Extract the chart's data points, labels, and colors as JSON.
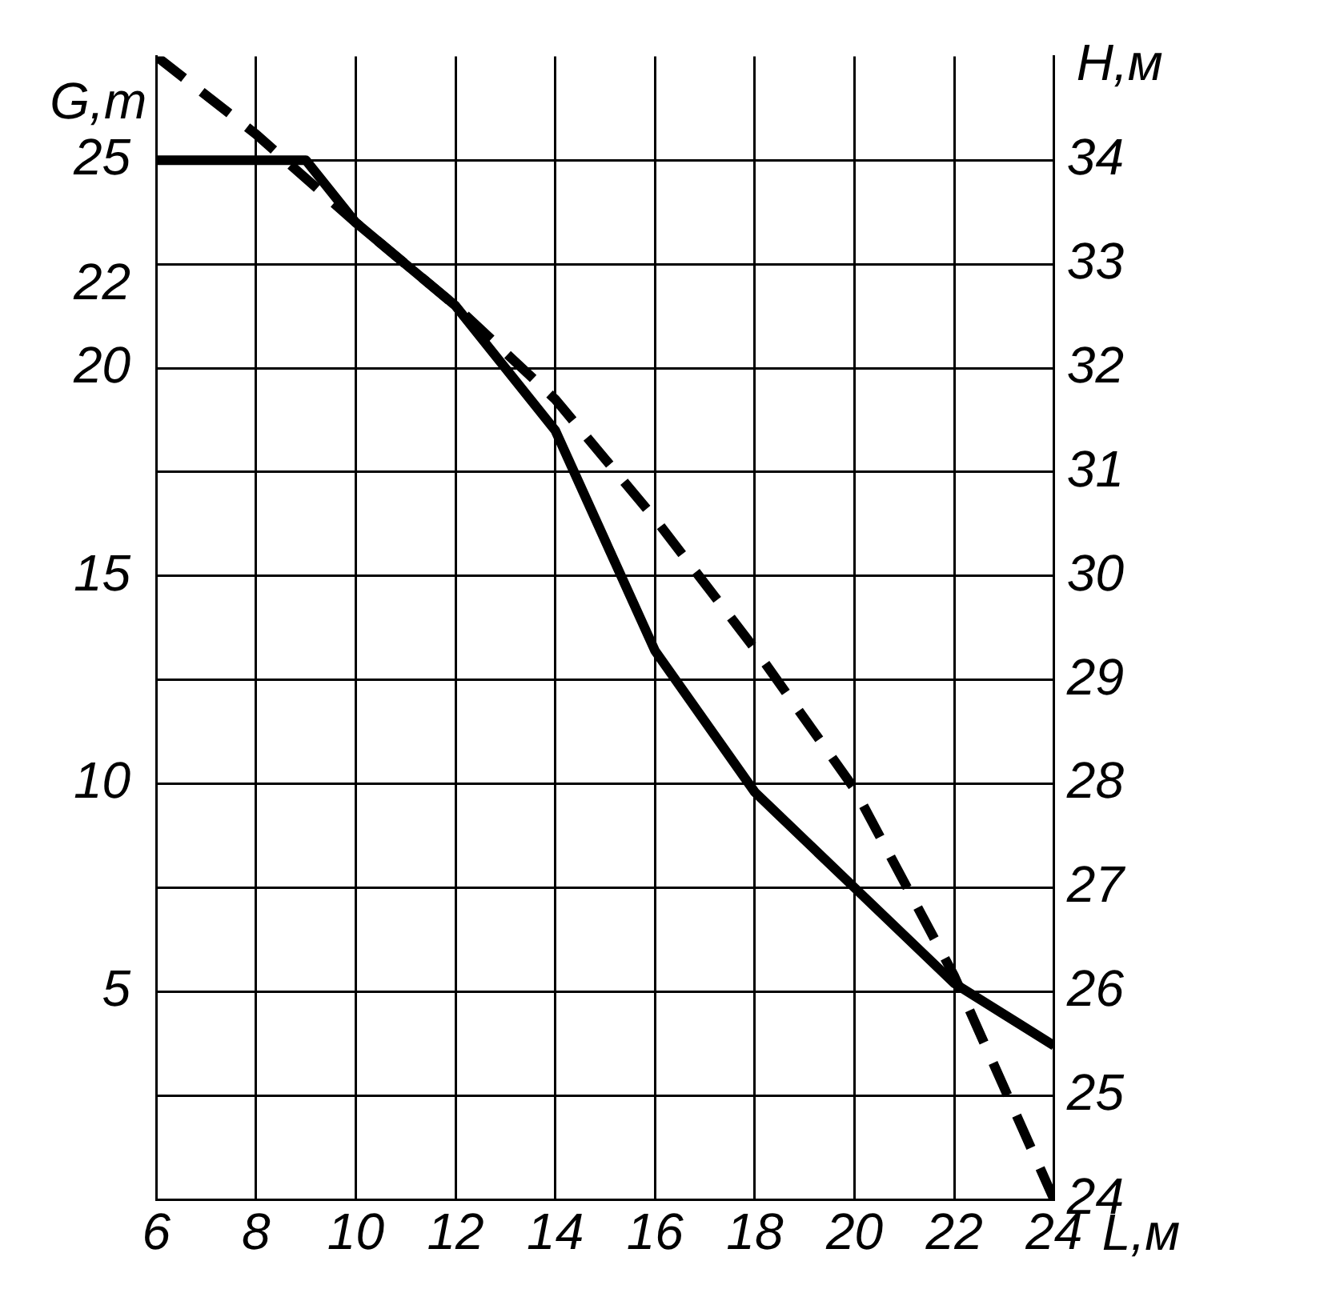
{
  "chart_data": {
    "type": "line",
    "xlabel": "L,м",
    "ylabel": "G,т",
    "y2label": "H,м",
    "x": [
      6,
      9,
      10,
      12,
      14,
      16,
      18,
      20,
      22,
      24
    ],
    "xlim": [
      6,
      24
    ],
    "xticks": [
      6,
      8,
      10,
      12,
      14,
      16,
      18,
      20,
      22,
      24
    ],
    "ylim": [
      0,
      27.5
    ],
    "yticks": [
      5,
      10,
      15,
      20,
      22,
      25
    ],
    "y2lim": [
      24,
      35
    ],
    "y2ticks": [
      24,
      25,
      26,
      27,
      28,
      29,
      30,
      31,
      32,
      33,
      34
    ],
    "series": [
      {
        "color": "#000000",
        "values": [
          25,
          25,
          23.5,
          21.5,
          18.5,
          13.2,
          9.8,
          7.5,
          5.2,
          3.7
        ],
        "line_style": "solid"
      },
      {
        "color": "#000000",
        "x": [
          6,
          8,
          10,
          12,
          14,
          16,
          18,
          20,
          22,
          24
        ],
        "values": [
          35,
          34.25,
          33.4,
          32.6,
          31.7,
          30.55,
          29.3,
          27.95,
          26.15,
          24
        ],
        "axis": "y2",
        "line_style": "dashed"
      }
    ],
    "grid": true,
    "marker": "none",
    "tick_labels": "xy"
  }
}
